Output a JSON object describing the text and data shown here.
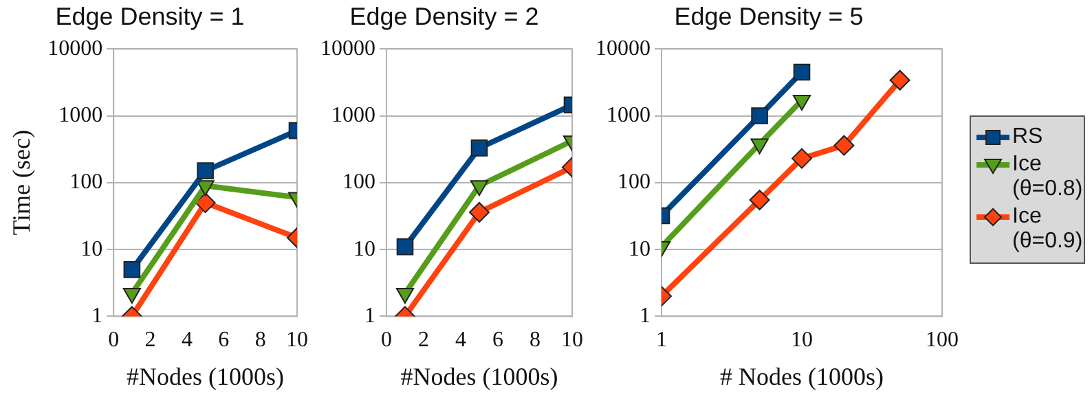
{
  "chart_data": [
    {
      "type": "line",
      "title": "Edge Density = 1",
      "xlabel": "#Nodes (1000s)",
      "ylabel": "Time (sec)",
      "log": "y",
      "grid": "y",
      "legend": false,
      "x": [
        1,
        5,
        10
      ],
      "xlim": [
        0,
        10
      ],
      "xticks": [
        0,
        2,
        4,
        6,
        8,
        10
      ],
      "ylim": [
        1,
        10000
      ],
      "yticks": [
        1,
        10,
        100,
        1000,
        10000
      ],
      "series": [
        {
          "color": "#004586",
          "marker": "square",
          "values": [
            5,
            150,
            600
          ]
        },
        {
          "color": "#579d1c",
          "marker": "triangle",
          "values": [
            2.2,
            90,
            60
          ]
        },
        {
          "color": "#ff420e",
          "marker": "diamond",
          "values": [
            1,
            50,
            15
          ]
        }
      ]
    },
    {
      "type": "line",
      "title": "Edge Density = 2",
      "xlabel": "#Nodes (1000s)",
      "log": "y",
      "grid": "y",
      "legend": false,
      "x": [
        1,
        5,
        10
      ],
      "xlim": [
        0,
        10
      ],
      "xticks": [
        0,
        2,
        4,
        6,
        8,
        10
      ],
      "ylim": [
        1,
        10000
      ],
      "yticks": [
        1,
        10,
        100,
        1000,
        10000
      ],
      "series": [
        {
          "color": "#004586",
          "marker": "square",
          "values": [
            11,
            330,
            1450
          ]
        },
        {
          "color": "#579d1c",
          "marker": "triangle",
          "values": [
            2.2,
            90,
            420
          ]
        },
        {
          "color": "#ff420e",
          "marker": "diamond",
          "values": [
            1,
            36,
            170
          ]
        }
      ]
    },
    {
      "type": "line",
      "title": "Edge Density = 5",
      "xlabel": "# Nodes (1000s)",
      "log": "xy",
      "grid": "y",
      "legend": "right",
      "x": [
        1,
        5,
        10
      ],
      "xlim": [
        1,
        100
      ],
      "xticks": [
        1,
        10,
        100
      ],
      "ylim": [
        1,
        10000
      ],
      "yticks": [
        1,
        10,
        100,
        1000,
        10000
      ],
      "series": [
        {
          "name": "RS",
          "color": "#004586",
          "marker": "square",
          "values": [
            32,
            1000,
            4500
          ]
        },
        {
          "name": "Ice (θ=0.8)",
          "color": "#579d1c",
          "marker": "triangle",
          "values": [
            11,
            380,
            1700
          ]
        },
        {
          "name": "Ice (θ=0.9)",
          "color": "#ff420e",
          "marker": "diamond",
          "x": [
            1,
            5,
            10,
            20,
            50
          ],
          "values": [
            2,
            55,
            230,
            360,
            3400
          ]
        }
      ]
    }
  ]
}
